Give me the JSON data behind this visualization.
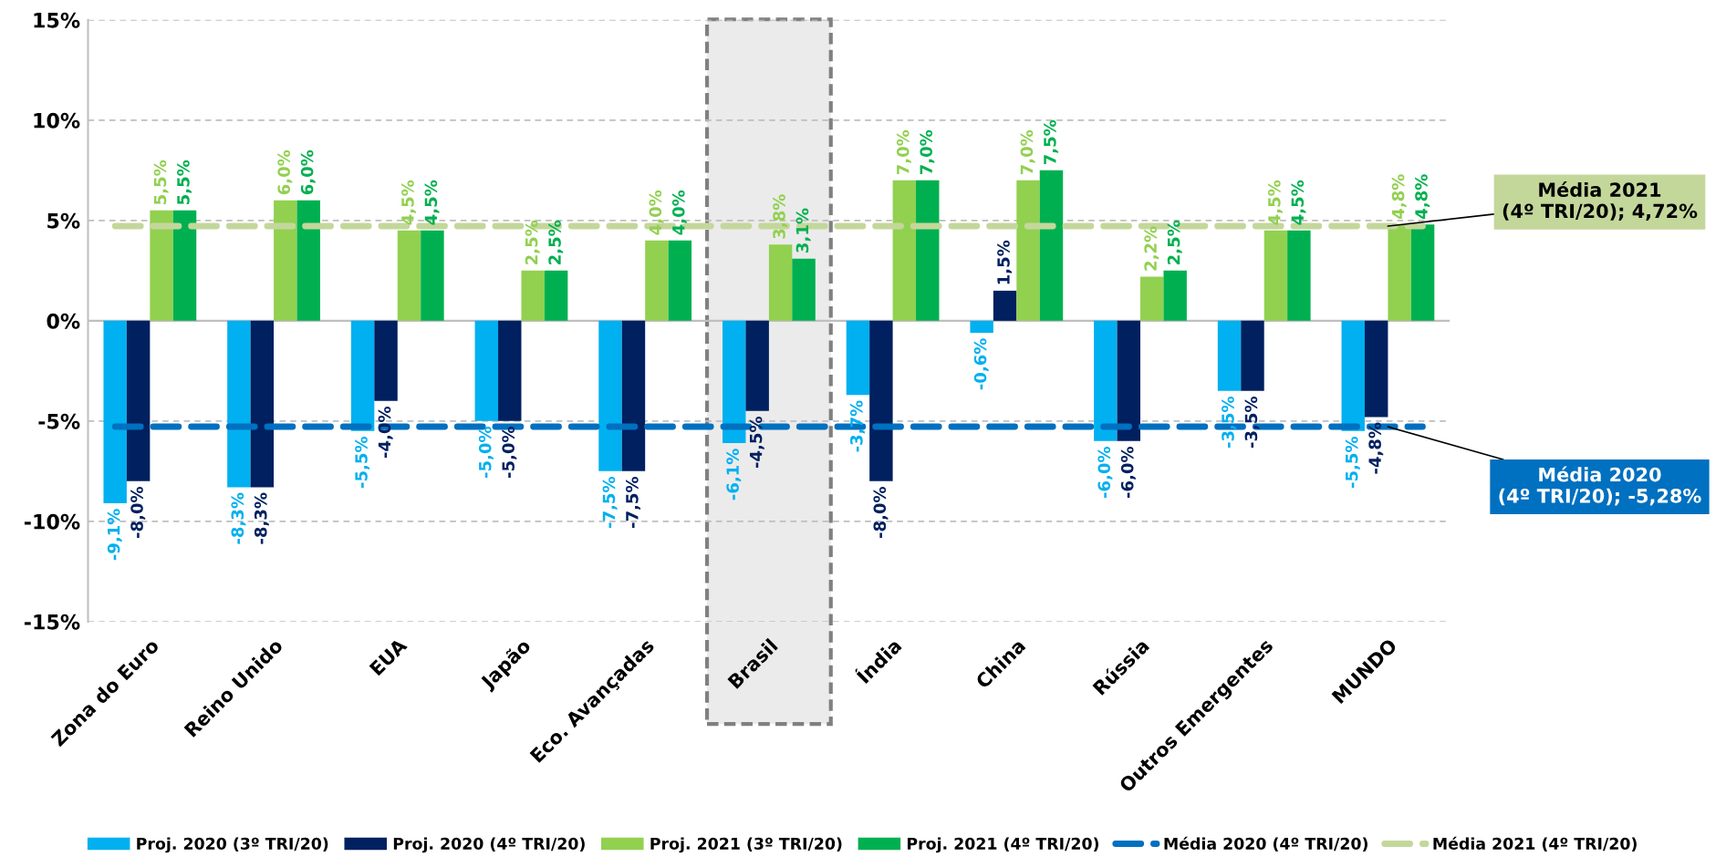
{
  "chart_data": {
    "type": "bar",
    "categories": [
      "Zona do Euro",
      "Reino Unido",
      "EUA",
      "Japão",
      "Eco. Avançadas",
      "Brasil",
      "Índia",
      "China",
      "Rússia",
      "Outros Emergentes",
      "MUNDO"
    ],
    "series": [
      {
        "name": "Proj. 2020 (3º TRI/20)",
        "color": "#00b0f0",
        "values": [
          -9.1,
          -8.3,
          -5.5,
          -5.0,
          -7.5,
          -6.1,
          -3.7,
          -0.6,
          -6.0,
          -3.5,
          -5.5
        ],
        "value_labels": [
          "-9,1%",
          "-8,3%",
          "-5,5%",
          "-5,0%",
          "-7,5%",
          "-6,1%",
          "-3,7%",
          "-0,6%",
          "-6,0%",
          "-3,5%",
          "-5,5%"
        ]
      },
      {
        "name": "Proj. 2020 (4º TRI/20)",
        "color": "#002060",
        "values": [
          -8.0,
          -8.3,
          -4.0,
          -5.0,
          -7.5,
          -4.5,
          -8.0,
          1.5,
          -6.0,
          -3.5,
          -4.8
        ],
        "value_labels": [
          "-8,0%",
          "-8,3%",
          "-4,0%",
          "-5,0%",
          "-7,5%",
          "-4,5%",
          "-8,0%",
          "1,5%",
          "-6,0%",
          "-3,5%",
          "-4,8%"
        ]
      },
      {
        "name": "Proj. 2021 (3º TRI/20)",
        "color": "#92d050",
        "values": [
          5.5,
          6.0,
          4.5,
          2.5,
          4.0,
          3.8,
          7.0,
          7.0,
          2.2,
          4.5,
          4.8
        ],
        "value_labels": [
          "5,5%",
          "6,0%",
          "4,5%",
          "2,5%",
          "4,0%",
          "3,8%",
          "7,0%",
          "7,0%",
          "2,2%",
          "4,5%",
          "4,8%"
        ]
      },
      {
        "name": "Proj. 2021 (4º TRI/20)",
        "color": "#00b050",
        "values": [
          5.5,
          6.0,
          4.5,
          2.5,
          4.0,
          3.1,
          7.0,
          7.5,
          2.5,
          4.5,
          4.8
        ],
        "value_labels": [
          "5,5%",
          "6,0%",
          "4,5%",
          "2,5%",
          "4,0%",
          "3,1%",
          "7,0%",
          "7,5%",
          "2,5%",
          "4,5%",
          "4,8%"
        ]
      }
    ],
    "ylim": [
      -15,
      15
    ],
    "yticks": [
      {
        "value": -15,
        "label": "-15%"
      },
      {
        "value": -10,
        "label": "-10%"
      },
      {
        "value": -5,
        "label": "-5%"
      },
      {
        "value": 0,
        "label": "0%"
      },
      {
        "value": 5,
        "label": "5%"
      },
      {
        "value": 10,
        "label": "10%"
      },
      {
        "value": 15,
        "label": "15%"
      }
    ],
    "grid": "y",
    "legend": "bottom",
    "ref_lines": [
      {
        "axis": "y",
        "value": -5.28,
        "label": "Média 2020 (4º TRI/20)",
        "color": "#0070c0",
        "line_style": "dashed"
      },
      {
        "axis": "y",
        "value": 4.72,
        "label": "Média 2021 (4º TRI/20)",
        "color": "#c4d79b",
        "line_style": "dashed"
      }
    ],
    "bands": [
      {
        "axis": "x",
        "from": "Brasil",
        "to": "Brasil",
        "color": "#ebebeb"
      }
    ],
    "annotations": [
      {
        "text": "Média 2020\n(4º TRI/20); -5,28%",
        "x": "MUNDO",
        "y": -5.28
      },
      {
        "text": "Média 2021\n(4º TRI/20); 4,72%",
        "x": "MUNDO",
        "y": 4.72
      }
    ]
  }
}
